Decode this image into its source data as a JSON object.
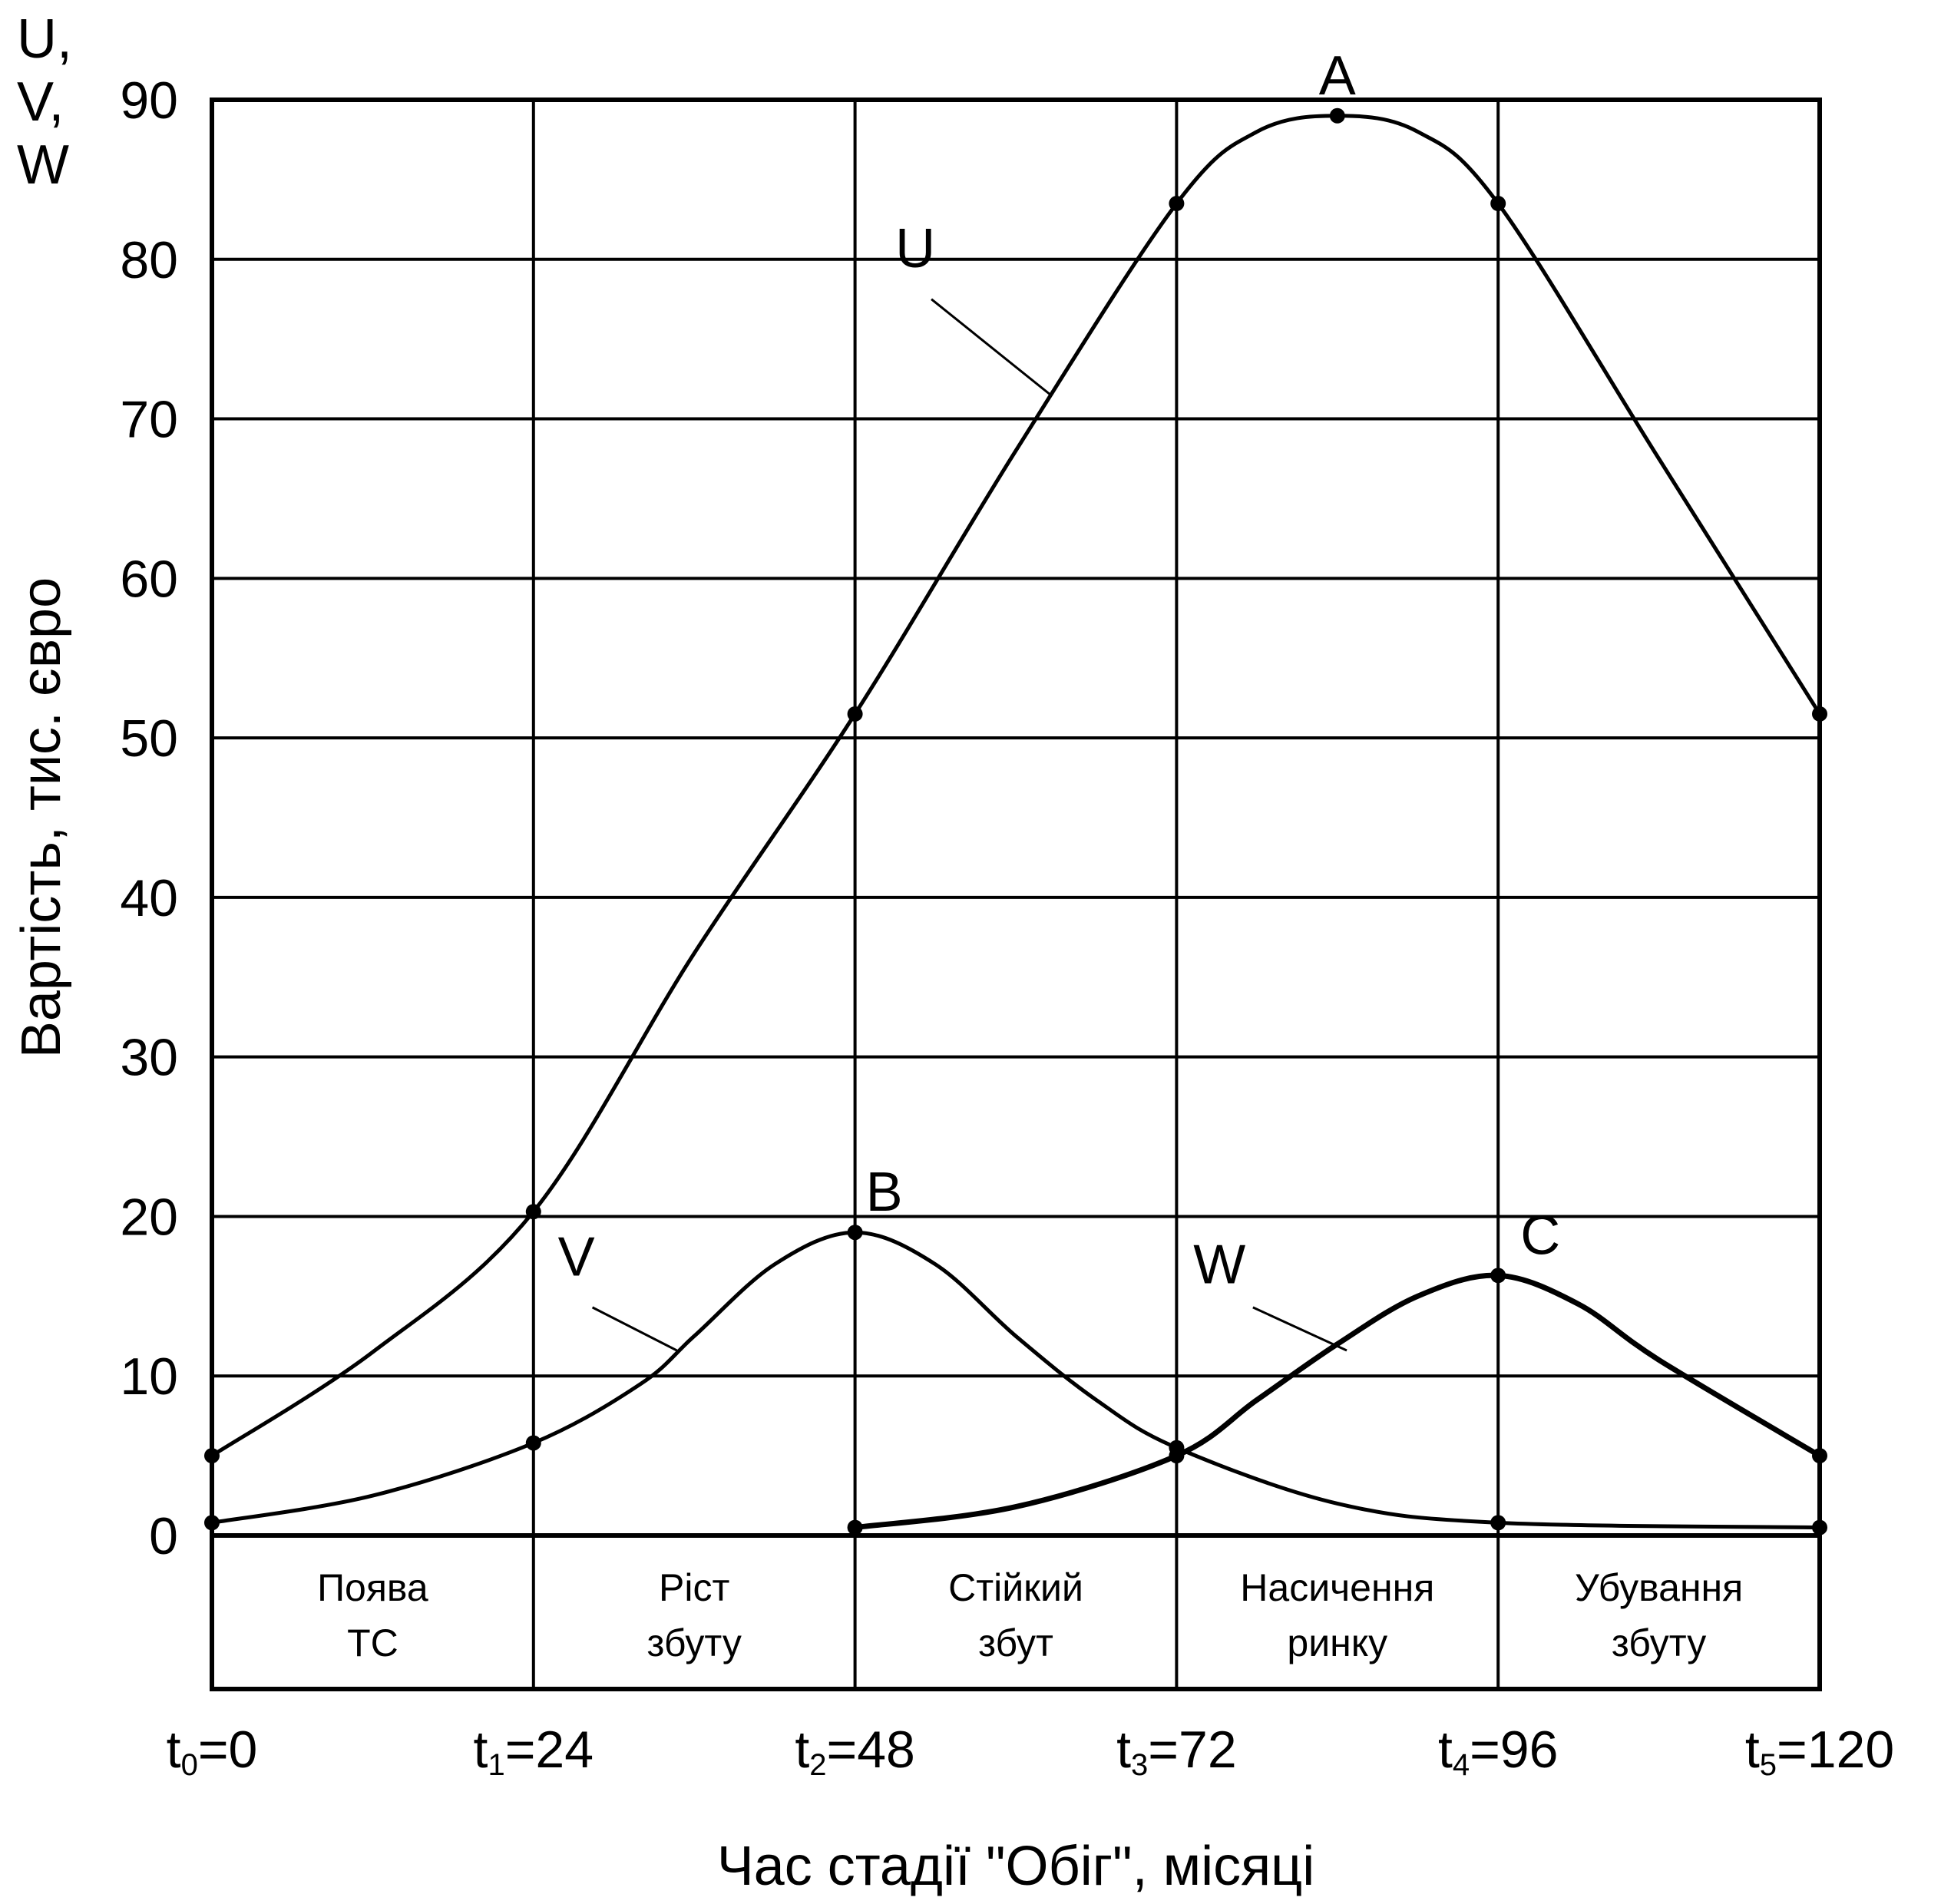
{
  "chart_data": {
    "type": "line",
    "xlabel": "Час стадії \"Обіг\", місяці",
    "ylabel": "Вартість, тис. євро",
    "y_corner_label": [
      "U,",
      "V,",
      "W"
    ],
    "xlim": [
      0,
      120
    ],
    "ylim": [
      0,
      90
    ],
    "yticks": [
      0,
      10,
      20,
      30,
      40,
      50,
      60,
      70,
      80,
      90
    ],
    "xticks": [
      {
        "pre": "t",
        "sub": "0",
        "post": "=0",
        "value": 0
      },
      {
        "pre": "t",
        "sub": "1",
        "post": "=24",
        "value": 24
      },
      {
        "pre": "t",
        "sub": "2",
        "post": "=48",
        "value": 48
      },
      {
        "pre": "t",
        "sub": "3",
        "post": "=72",
        "value": 72
      },
      {
        "pre": "t",
        "sub": "4",
        "post": "=96",
        "value": 96
      },
      {
        "pre": "t",
        "sub": "5",
        "post": "=120",
        "value": 120
      }
    ],
    "grid": true,
    "stages": [
      {
        "lines": [
          "Поява",
          "ТС"
        ],
        "x0": 0,
        "x1": 24
      },
      {
        "lines": [
          "Ріст",
          "збуту"
        ],
        "x0": 24,
        "x1": 48
      },
      {
        "lines": [
          "Стійкий",
          "збут"
        ],
        "x0": 48,
        "x1": 72
      },
      {
        "lines": [
          "Насичення",
          "ринку"
        ],
        "x0": 72,
        "x1": 96
      },
      {
        "lines": [
          "Убування",
          "збуту"
        ],
        "x0": 96,
        "x1": 120
      }
    ],
    "series": [
      {
        "name": "U",
        "stroke": 5,
        "x": [
          0,
          24,
          48,
          72,
          84,
          96,
          120
        ],
        "y": [
          5,
          20.3,
          51.5,
          83.5,
          89,
          83.5,
          51.5
        ],
        "curve": [
          [
            0,
            5
          ],
          [
            12,
            11.5
          ],
          [
            24,
            20.3
          ],
          [
            36,
            36.5
          ],
          [
            48,
            51.5
          ],
          [
            60,
            68
          ],
          [
            72,
            83.5
          ],
          [
            78,
            88
          ],
          [
            84,
            89
          ],
          [
            90,
            88
          ],
          [
            96,
            83.5
          ],
          [
            108,
            67.5
          ],
          [
            120,
            51.5
          ]
        ],
        "markers": [
          [
            0,
            5
          ],
          [
            24,
            20.3
          ],
          [
            48,
            51.5
          ],
          [
            72,
            83.5
          ],
          [
            84,
            89
          ],
          [
            96,
            83.5
          ],
          [
            120,
            51.5
          ]
        ]
      },
      {
        "name": "V",
        "stroke": 5,
        "x": [
          0,
          24,
          48,
          72,
          96,
          120
        ],
        "y": [
          0.8,
          5.8,
          19,
          5.5,
          0.8,
          0.5
        ],
        "curve": [
          [
            0,
            0.8
          ],
          [
            12,
            2.5
          ],
          [
            24,
            5.8
          ],
          [
            32,
            9.5
          ],
          [
            36,
            12.5
          ],
          [
            42,
            17
          ],
          [
            48,
            19
          ],
          [
            54,
            17
          ],
          [
            60,
            12.5
          ],
          [
            66,
            8.5
          ],
          [
            72,
            5.5
          ],
          [
            84,
            2
          ],
          [
            96,
            0.8
          ],
          [
            120,
            0.5
          ]
        ],
        "markers": [
          [
            0,
            0.8
          ],
          [
            24,
            5.8
          ],
          [
            48,
            19
          ],
          [
            72,
            5.5
          ],
          [
            96,
            0.8
          ],
          [
            120,
            0.5
          ]
        ]
      },
      {
        "name": "W",
        "stroke": 7,
        "x": [
          48,
          72,
          96,
          120
        ],
        "y": [
          0.5,
          5,
          16.3,
          5
        ],
        "curve": [
          [
            48,
            0.5
          ],
          [
            60,
            1.8
          ],
          [
            72,
            5
          ],
          [
            78,
            8.5
          ],
          [
            84,
            12
          ],
          [
            90,
            15
          ],
          [
            96,
            16.3
          ],
          [
            102,
            14.5
          ],
          [
            108,
            11
          ],
          [
            120,
            5
          ]
        ],
        "markers": [
          [
            48,
            0.5
          ],
          [
            72,
            5
          ],
          [
            96,
            16.3
          ],
          [
            120,
            5
          ]
        ]
      }
    ],
    "annotations": [
      {
        "text": "A",
        "x": 84,
        "y": 89
      },
      {
        "text": "B",
        "x": 48,
        "y": 19
      },
      {
        "text": "C",
        "x": 96,
        "y": 16.3
      }
    ],
    "curve_labels": [
      {
        "text": "U",
        "x": 52.5,
        "y": 79.5,
        "lx1": 53.7,
        "ly1": 77.5,
        "lx2": 62.6,
        "ly2": 71.5
      },
      {
        "text": "V",
        "x": 27.2,
        "y": 16.3,
        "lx1": 28.4,
        "ly1": 14.3,
        "lx2": 34.7,
        "ly2": 11.6
      },
      {
        "text": "W",
        "x": 75.2,
        "y": 15.8,
        "lx1": 77.7,
        "ly1": 14.3,
        "lx2": 84.7,
        "ly2": 11.6
      }
    ]
  }
}
